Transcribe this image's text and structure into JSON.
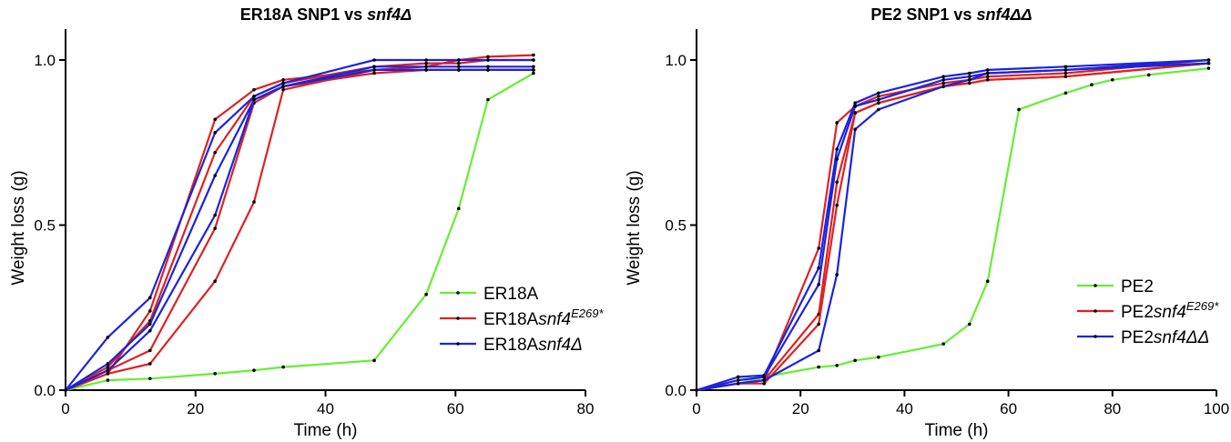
{
  "chart_data": [
    {
      "type": "line",
      "title": {
        "main": "ER18A SNP1 vs ",
        "ital": "snf4Δ"
      },
      "xlabel": "Time (h)",
      "ylabel": "Weight loss (g)",
      "xlim": [
        0,
        80
      ],
      "ylim": [
        0,
        1.0
      ],
      "xticks": [
        "0",
        "20",
        "40",
        "60",
        "80"
      ],
      "yticks": [
        "0.0",
        "0.5",
        "1.0"
      ],
      "legend": "right",
      "legend_entries": [
        {
          "base": "ER18A",
          "ital": "",
          "sup": "",
          "color": "#66ee33"
        },
        {
          "base": "ER18A",
          "ital": "snf4",
          "sup": "E269*",
          "color": "#dd2222"
        },
        {
          "base": "ER18A",
          "ital": "snf4Δ",
          "sup": "",
          "color": "#1b24dd"
        }
      ],
      "series": [
        {
          "color": "#66ee33",
          "x": [
            0,
            6.5,
            13,
            23,
            29,
            33.5,
            47.5,
            55.5,
            60.5,
            65,
            72
          ],
          "y": [
            0,
            0.03,
            0.035,
            0.05,
            0.06,
            0.07,
            0.09,
            0.29,
            0.55,
            0.88,
            0.96
          ]
        },
        {
          "color": "#dd2222",
          "x": [
            0,
            6.5,
            13,
            23,
            29,
            33.5,
            47.5,
            55.5,
            60.5,
            65,
            72
          ],
          "y": [
            0,
            0.05,
            0.24,
            0.82,
            0.91,
            0.94,
            0.97,
            0.98,
            1.0,
            1.01,
            1.015
          ]
        },
        {
          "color": "#dd2222",
          "x": [
            0,
            6.5,
            13,
            23,
            29,
            33.5,
            47.5,
            55.5,
            60.5,
            65,
            72
          ],
          "y": [
            0,
            0.07,
            0.21,
            0.72,
            0.89,
            0.93,
            0.98,
            0.99,
            0.99,
            1.0,
            1.0
          ]
        },
        {
          "color": "#dd2222",
          "x": [
            0,
            6.5,
            13,
            23,
            29,
            33.5,
            47.5,
            55.5,
            60.5,
            65,
            72
          ],
          "y": [
            0,
            0.06,
            0.12,
            0.49,
            0.87,
            0.92,
            0.96,
            0.97,
            0.97,
            0.97,
            0.97
          ]
        },
        {
          "color": "#dd2222",
          "x": [
            0,
            6.5,
            13,
            23,
            29,
            33.5,
            47.5,
            55.5,
            60.5,
            65,
            72
          ],
          "y": [
            0,
            0.05,
            0.08,
            0.33,
            0.57,
            0.91,
            0.97,
            0.97,
            0.97,
            0.97,
            0.97
          ]
        },
        {
          "color": "#1b24dd",
          "x": [
            0,
            6.5,
            13,
            23,
            29,
            33.5,
            47.5,
            55.5,
            60.5,
            65,
            72
          ],
          "y": [
            0,
            0.16,
            0.28,
            0.78,
            0.89,
            0.93,
            1.0,
            1.0,
            1.0,
            1.0,
            1.0
          ]
        },
        {
          "color": "#1b24dd",
          "x": [
            0,
            6.5,
            13,
            23,
            29,
            33.5,
            47.5,
            55.5,
            60.5,
            65,
            72
          ],
          "y": [
            0,
            0.08,
            0.2,
            0.65,
            0.88,
            0.92,
            0.98,
            0.98,
            0.98,
            0.98,
            0.98
          ]
        },
        {
          "color": "#1b24dd",
          "x": [
            0,
            6.5,
            13,
            23,
            29,
            33.5,
            47.5,
            55.5,
            60.5,
            65,
            72
          ],
          "y": [
            0,
            0.06,
            0.18,
            0.53,
            0.88,
            0.92,
            0.97,
            0.97,
            0.97,
            0.97,
            0.97
          ]
        }
      ]
    },
    {
      "type": "line",
      "title": {
        "main": "PE2 SNP1 vs ",
        "ital": "snf4ΔΔ"
      },
      "xlabel": "Time (h)",
      "ylabel": "Weight loss (g)",
      "xlim": [
        0,
        100
      ],
      "ylim": [
        0,
        1.0
      ],
      "xticks": [
        "0",
        "20",
        "40",
        "60",
        "80",
        "100"
      ],
      "yticks": [
        "0.0",
        "0.5",
        "1.0"
      ],
      "legend": "right",
      "legend_entries": [
        {
          "base": "PE2",
          "ital": "",
          "sup": "",
          "color": "#66ee33"
        },
        {
          "base": "PE2",
          "ital": "snf4",
          "sup": "E269*",
          "color": "#dd2222"
        },
        {
          "base": "PE2",
          "ital": "snf4ΔΔ",
          "sup": "",
          "color": "#1b24dd"
        }
      ],
      "series": [
        {
          "color": "#66ee33",
          "x": [
            0,
            8,
            13,
            23.5,
            27,
            30.5,
            35,
            47.5,
            52.5,
            56,
            62,
            71,
            76,
            80,
            87,
            98.5
          ],
          "y": [
            0,
            0.02,
            0.04,
            0.07,
            0.075,
            0.09,
            0.1,
            0.14,
            0.2,
            0.33,
            0.85,
            0.9,
            0.925,
            0.94,
            0.955,
            0.975
          ]
        },
        {
          "color": "#dd2222",
          "x": [
            0,
            8,
            13,
            23.5,
            27,
            30.5,
            35,
            47.5,
            52.5,
            56,
            71,
            98.5
          ],
          "y": [
            0,
            0.02,
            0.03,
            0.43,
            0.81,
            0.86,
            0.89,
            0.93,
            0.94,
            0.95,
            0.96,
            1.0
          ]
        },
        {
          "color": "#dd2222",
          "x": [
            0,
            8,
            13,
            23.5,
            27,
            30.5,
            35,
            47.5,
            52.5,
            56,
            71,
            98.5
          ],
          "y": [
            0,
            0.02,
            0.03,
            0.23,
            0.63,
            0.84,
            0.87,
            0.92,
            0.93,
            0.94,
            0.95,
            0.99
          ]
        },
        {
          "color": "#dd2222",
          "x": [
            0,
            8,
            13,
            23.5,
            27,
            30.5,
            35,
            47.5,
            52.5,
            56,
            71,
            98.5
          ],
          "y": [
            0,
            0.02,
            0.02,
            0.2,
            0.56,
            0.84,
            0.87,
            0.92,
            0.93,
            0.94,
            0.95,
            0.99
          ]
        },
        {
          "color": "#1b24dd",
          "x": [
            0,
            8,
            13,
            23.5,
            27,
            30.5,
            35,
            47.5,
            52.5,
            56,
            71,
            98.5
          ],
          "y": [
            0,
            0.04,
            0.045,
            0.37,
            0.73,
            0.87,
            0.9,
            0.95,
            0.96,
            0.97,
            0.98,
            1.0
          ]
        },
        {
          "color": "#1b24dd",
          "x": [
            0,
            8,
            13,
            23.5,
            27,
            30.5,
            35,
            47.5,
            52.5,
            56,
            71,
            98.5
          ],
          "y": [
            0,
            0.03,
            0.04,
            0.32,
            0.7,
            0.86,
            0.88,
            0.94,
            0.95,
            0.96,
            0.97,
            1.0
          ]
        },
        {
          "color": "#1b24dd",
          "x": [
            0,
            8,
            13,
            23.5,
            27,
            30.5,
            35,
            47.5,
            52.5,
            56,
            71,
            98.5
          ],
          "y": [
            0,
            0.02,
            0.03,
            0.12,
            0.35,
            0.79,
            0.85,
            0.92,
            0.94,
            0.96,
            0.97,
            0.99
          ]
        }
      ]
    }
  ]
}
